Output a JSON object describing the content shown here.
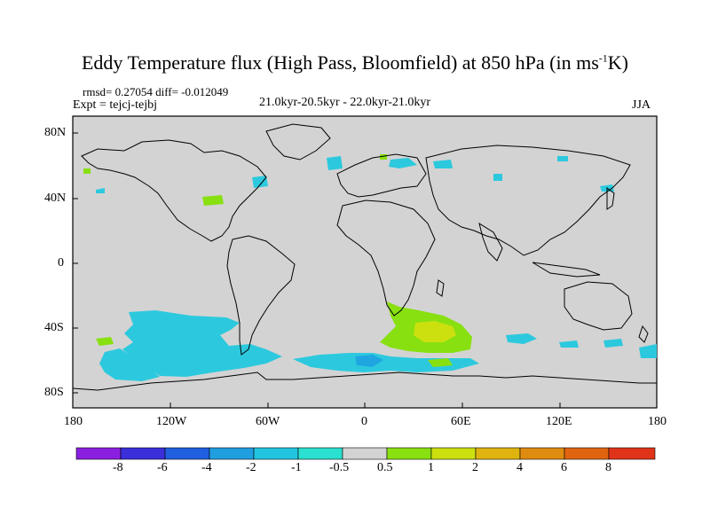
{
  "title": {
    "main": "Eddy Temperature flux (High Pass, Bloomfield) at 850 hPa (in ms",
    "sup": "-1",
    "tail": "K)"
  },
  "stats": {
    "rmsd": "rmsd= 0.27054",
    "diff": "diff= -0.012049",
    "experiment": "Expt = tejcj-tejbj",
    "period": "21.0kyr-20.5kyr - 22.0kyr-21.0kyr",
    "season": "JJA"
  },
  "axes": {
    "x_ticks": [
      "180",
      "120W",
      "60W",
      "0",
      "60E",
      "120E",
      "180"
    ],
    "y_ticks": [
      "80N",
      "40N",
      "0",
      "40S",
      "80S"
    ]
  },
  "colorbar": {
    "labels": [
      "-8",
      "-6",
      "-4",
      "-2",
      "-1",
      "-0.5",
      "0.5",
      "1",
      "2",
      "4",
      "6",
      "8"
    ],
    "colors": [
      "#8a1fe0",
      "#3a2fd9",
      "#1f5fe0",
      "#1f9fe0",
      "#22c5e0",
      "#2ae0d0",
      "#d3d3d3",
      "#88e010",
      "#cce010",
      "#e0b410",
      "#e08c10",
      "#e06410",
      "#e0341a"
    ]
  },
  "map": {
    "background": "#d3d3d3",
    "coastline": "#000000"
  }
}
